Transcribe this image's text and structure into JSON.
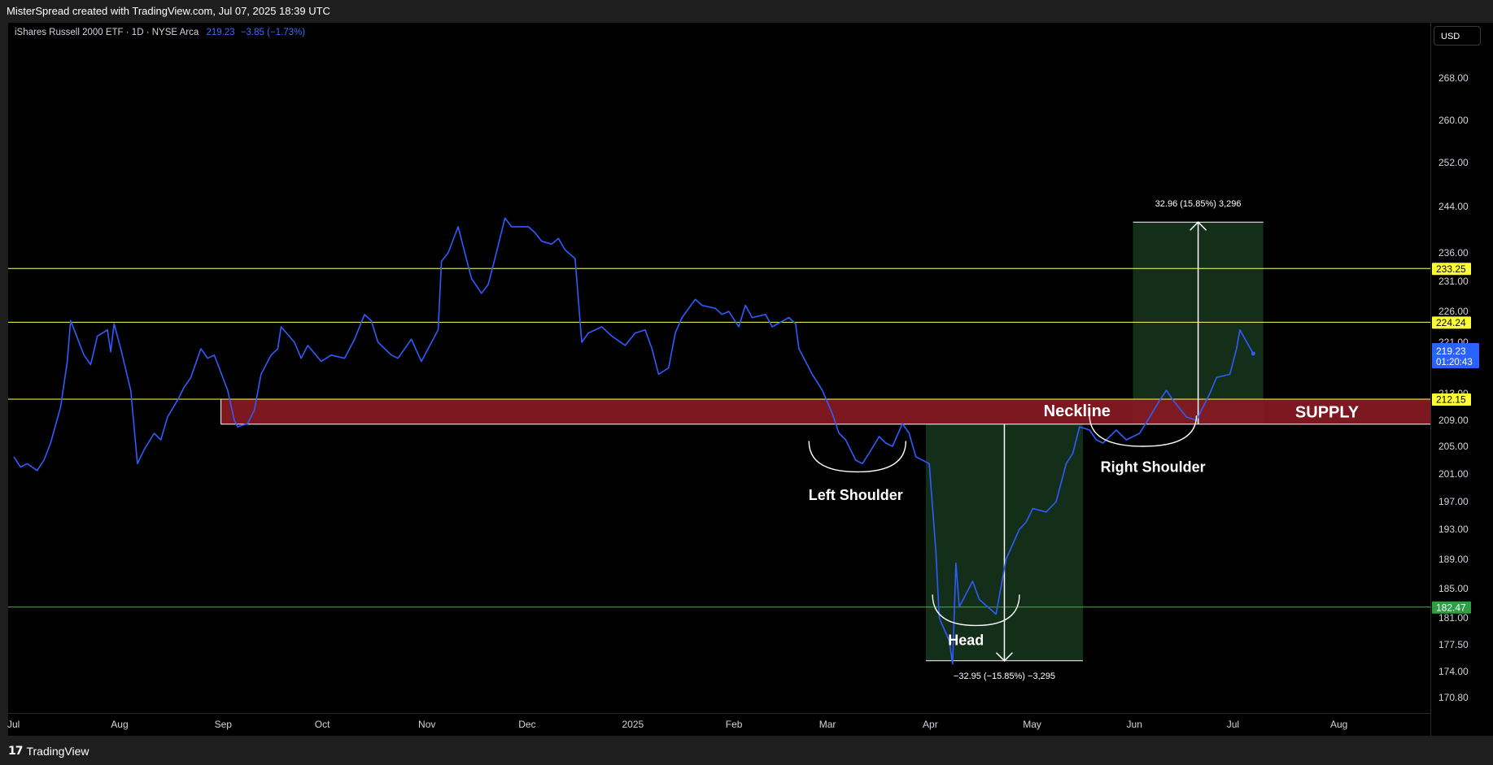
{
  "header": {
    "attribution": "MisterSpread created with TradingView.com, Jul 07, 2025 18:39 UTC"
  },
  "legend": {
    "symbol": "iShares Russell 2000 ETF · 1D · NYSE Arca",
    "last": "219.23",
    "change": "−3.85 (−1.73%)"
  },
  "currency_button": "USD",
  "brand": "TradingView",
  "colors": {
    "series": "#2f5cff",
    "resistance": "#ffff66",
    "support": "#4caf50",
    "supply_zone": "#8b1a24",
    "projection_box": "#14301a",
    "annotation": "#ffffff"
  },
  "chart_data": {
    "type": "line",
    "x_axis_type": "date",
    "x_tick_labels": [
      "Jul",
      "Aug",
      "Sep",
      "Oct",
      "Nov",
      "Dec",
      "2025",
      "Feb",
      "Mar",
      "Apr",
      "May",
      "Jun",
      "Jul",
      "Aug"
    ],
    "x_tick_dates": [
      "2024-07-01",
      "2024-08-01",
      "2024-09-01",
      "2024-10-01",
      "2024-11-01",
      "2024-12-01",
      "2025-01-01",
      "2025-02-01",
      "2025-03-01",
      "2025-04-01",
      "2025-05-01",
      "2025-06-01",
      "2025-07-01",
      "2025-08-01"
    ],
    "y_tick_labels": [
      "268.00",
      "260.00",
      "252.00",
      "244.00",
      "236.00",
      "231.00",
      "226.00",
      "221.00",
      "213.00",
      "209.00",
      "205.00",
      "201.00",
      "197.00",
      "193.00",
      "189.00",
      "185.00",
      "181.00",
      "177.50",
      "174.00",
      "170.80"
    ],
    "y_scale": "log",
    "ylim": [
      168.5,
      280
    ],
    "grid": false,
    "series": [
      {
        "color": "#2f5cff",
        "points": [
          [
            "2024-07-01",
            203.5
          ],
          [
            "2024-07-03",
            202.0
          ],
          [
            "2024-07-05",
            202.5
          ],
          [
            "2024-07-08",
            201.5
          ],
          [
            "2024-07-10",
            203.0
          ],
          [
            "2024-07-12",
            205.5
          ],
          [
            "2024-07-15",
            211.0
          ],
          [
            "2024-07-17",
            218.0
          ],
          [
            "2024-07-18",
            224.5
          ],
          [
            "2024-07-22",
            219.0
          ],
          [
            "2024-07-24",
            217.5
          ],
          [
            "2024-07-26",
            222.0
          ],
          [
            "2024-07-29",
            223.0
          ],
          [
            "2024-07-30",
            219.5
          ],
          [
            "2024-07-31",
            224.0
          ],
          [
            "2024-08-02",
            220.0
          ],
          [
            "2024-08-05",
            213.5
          ],
          [
            "2024-08-07",
            202.5
          ],
          [
            "2024-08-09",
            204.5
          ],
          [
            "2024-08-12",
            207.0
          ],
          [
            "2024-08-14",
            206.0
          ],
          [
            "2024-08-16",
            209.5
          ],
          [
            "2024-08-19",
            212.0
          ],
          [
            "2024-08-21",
            214.0
          ],
          [
            "2024-08-23",
            215.5
          ],
          [
            "2024-08-26",
            220.0
          ],
          [
            "2024-08-28",
            218.5
          ],
          [
            "2024-08-30",
            219.0
          ],
          [
            "2024-09-03",
            213.5
          ],
          [
            "2024-09-05",
            209.0
          ],
          [
            "2024-09-06",
            208.0
          ],
          [
            "2024-09-09",
            208.5
          ],
          [
            "2024-09-11",
            210.5
          ],
          [
            "2024-09-13",
            216.0
          ],
          [
            "2024-09-16",
            219.0
          ],
          [
            "2024-09-18",
            220.0
          ],
          [
            "2024-09-19",
            223.5
          ],
          [
            "2024-09-23",
            221.0
          ],
          [
            "2024-09-25",
            218.5
          ],
          [
            "2024-09-27",
            220.5
          ],
          [
            "2024-10-01",
            218.0
          ],
          [
            "2024-10-04",
            219.0
          ],
          [
            "2024-10-08",
            218.5
          ],
          [
            "2024-10-11",
            221.5
          ],
          [
            "2024-10-14",
            225.5
          ],
          [
            "2024-10-16",
            224.5
          ],
          [
            "2024-10-18",
            221.0
          ],
          [
            "2024-10-22",
            219.0
          ],
          [
            "2024-10-24",
            218.5
          ],
          [
            "2024-10-28",
            221.5
          ],
          [
            "2024-10-31",
            218.0
          ],
          [
            "2024-11-05",
            223.0
          ],
          [
            "2024-11-06",
            234.5
          ],
          [
            "2024-11-08",
            236.0
          ],
          [
            "2024-11-11",
            240.5
          ],
          [
            "2024-11-13",
            236.0
          ],
          [
            "2024-11-15",
            231.5
          ],
          [
            "2024-11-18",
            229.0
          ],
          [
            "2024-11-20",
            230.5
          ],
          [
            "2024-11-22",
            235.0
          ],
          [
            "2024-11-25",
            242.0
          ],
          [
            "2024-11-27",
            240.5
          ],
          [
            "2024-12-02",
            240.5
          ],
          [
            "2024-12-04",
            239.5
          ],
          [
            "2024-12-06",
            238.0
          ],
          [
            "2024-12-09",
            237.5
          ],
          [
            "2024-12-11",
            238.5
          ],
          [
            "2024-12-13",
            236.5
          ],
          [
            "2024-12-16",
            235.0
          ],
          [
            "2024-12-18",
            221.0
          ],
          [
            "2024-12-20",
            222.5
          ],
          [
            "2024-12-24",
            223.5
          ],
          [
            "2024-12-27",
            222.0
          ],
          [
            "2024-12-31",
            220.5
          ],
          [
            "2025-01-03",
            222.5
          ],
          [
            "2025-01-06",
            223.0
          ],
          [
            "2025-01-08",
            220.0
          ],
          [
            "2025-01-10",
            216.0
          ],
          [
            "2025-01-13",
            217.0
          ],
          [
            "2025-01-15",
            222.5
          ],
          [
            "2025-01-17",
            225.0
          ],
          [
            "2025-01-21",
            228.0
          ],
          [
            "2025-01-23",
            227.0
          ],
          [
            "2025-01-27",
            226.5
          ],
          [
            "2025-01-29",
            225.5
          ],
          [
            "2025-01-31",
            226.0
          ],
          [
            "2025-02-03",
            223.5
          ],
          [
            "2025-02-05",
            227.0
          ],
          [
            "2025-02-07",
            225.0
          ],
          [
            "2025-02-11",
            225.5
          ],
          [
            "2025-02-13",
            223.5
          ],
          [
            "2025-02-18",
            225.0
          ],
          [
            "2025-02-20",
            224.0
          ],
          [
            "2025-02-21",
            220.0
          ],
          [
            "2025-02-25",
            216.0
          ],
          [
            "2025-02-28",
            213.5
          ],
          [
            "2025-03-03",
            210.0
          ],
          [
            "2025-03-05",
            207.0
          ],
          [
            "2025-03-07",
            206.0
          ],
          [
            "2025-03-10",
            203.0
          ],
          [
            "2025-03-12",
            202.5
          ],
          [
            "2025-03-14",
            204.0
          ],
          [
            "2025-03-17",
            206.5
          ],
          [
            "2025-03-19",
            205.5
          ],
          [
            "2025-03-21",
            205.0
          ],
          [
            "2025-03-24",
            208.5
          ],
          [
            "2025-03-26",
            207.0
          ],
          [
            "2025-03-28",
            203.5
          ],
          [
            "2025-04-01",
            202.5
          ],
          [
            "2025-04-03",
            190.0
          ],
          [
            "2025-04-04",
            181.0
          ],
          [
            "2025-04-07",
            178.0
          ],
          [
            "2025-04-08",
            175.0
          ],
          [
            "2025-04-09",
            188.5
          ],
          [
            "2025-04-10",
            182.5
          ],
          [
            "2025-04-14",
            186.0
          ],
          [
            "2025-04-16",
            183.5
          ],
          [
            "2025-04-21",
            181.5
          ],
          [
            "2025-04-24",
            189.0
          ],
          [
            "2025-04-28",
            193.0
          ],
          [
            "2025-04-30",
            194.0
          ],
          [
            "2025-05-02",
            196.0
          ],
          [
            "2025-05-06",
            195.5
          ],
          [
            "2025-05-09",
            197.0
          ],
          [
            "2025-05-12",
            202.5
          ],
          [
            "2025-05-14",
            204.0
          ],
          [
            "2025-05-16",
            208.0
          ],
          [
            "2025-05-19",
            207.5
          ],
          [
            "2025-05-21",
            206.0
          ],
          [
            "2025-05-23",
            205.5
          ],
          [
            "2025-05-27",
            207.5
          ],
          [
            "2025-05-30",
            206.0
          ],
          [
            "2025-06-03",
            207.0
          ],
          [
            "2025-06-06",
            209.5
          ],
          [
            "2025-06-09",
            212.0
          ],
          [
            "2025-06-11",
            213.5
          ],
          [
            "2025-06-13",
            212.0
          ],
          [
            "2025-06-17",
            209.5
          ],
          [
            "2025-06-20",
            209.0
          ],
          [
            "2025-06-24",
            213.0
          ],
          [
            "2025-06-26",
            215.5
          ],
          [
            "2025-06-30",
            216.0
          ],
          [
            "2025-07-02",
            220.0
          ],
          [
            "2025-07-03",
            223.0
          ],
          [
            "2025-07-07",
            219.23
          ]
        ]
      }
    ],
    "horizontal_lines": [
      {
        "value": 233.25,
        "label": "233.25",
        "color": "#ffff66"
      },
      {
        "value": 224.24,
        "label": "224.24",
        "color": "#ffff66"
      },
      {
        "value": 212.15,
        "label": "212.15",
        "color": "#ffff66"
      },
      {
        "value": 182.47,
        "label": "182.47",
        "color": "#4caf50"
      }
    ],
    "last_price": {
      "value": 219.23,
      "label": "219.23",
      "countdown": "01:20:43"
    },
    "supply_zone": {
      "from_date": "2024-09-01",
      "high": 212.15,
      "low": 208.4,
      "label": "SUPPLY"
    },
    "neckline": {
      "from_date": "2025-03-31",
      "to_date": "2025-06-30",
      "value": 208.4,
      "label": "Neckline"
    },
    "measures": [
      {
        "from_date": "2025-03-31",
        "to_date": "2025-05-17",
        "start": 208.4,
        "end": 175.4,
        "label": "−32.95 (−15.85%) −3,295"
      },
      {
        "from_date": "2025-06-01",
        "to_date": "2025-07-10",
        "start": 208.4,
        "end": 241.3,
        "label": "32.96 (15.85%) 3,296"
      }
    ],
    "pattern_labels": [
      {
        "text": "Left Shoulder",
        "date": "2025-03-10",
        "value": 198.4
      },
      {
        "text": "Head",
        "date": "2025-04-12",
        "value": 178.5
      },
      {
        "text": "Right Shoulder",
        "date": "2025-06-07",
        "value": 202.5
      }
    ],
    "arcs": [
      {
        "from_date": "2025-02-24",
        "to_date": "2025-03-25",
        "bottom": 201.3
      },
      {
        "from_date": "2025-04-02",
        "to_date": "2025-04-28",
        "bottom": 180.0
      },
      {
        "from_date": "2025-05-19",
        "to_date": "2025-06-20",
        "bottom": 205.0
      }
    ]
  }
}
